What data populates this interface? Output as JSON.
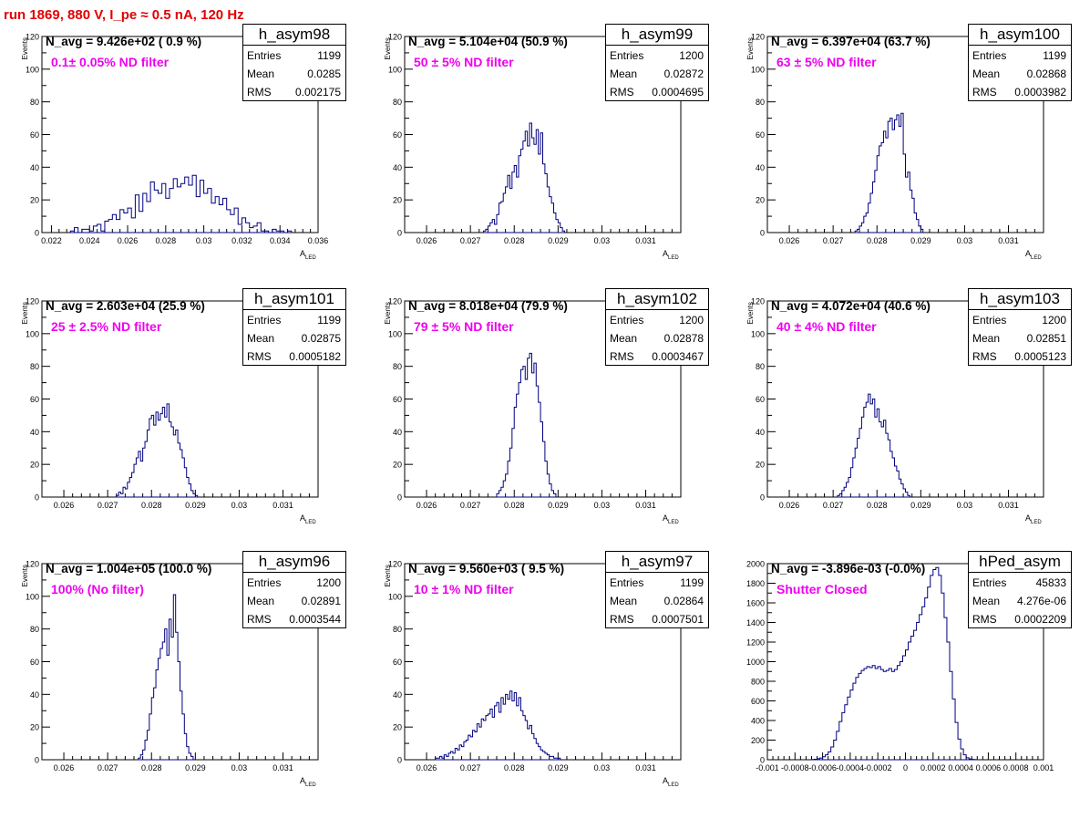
{
  "title": "run 1869,   880 V, I_pe ≈ 0.5 nA, 120 Hz",
  "colors": {
    "title": "#e00000",
    "annotation": "#ee00ee",
    "histogram": "#000080"
  },
  "chart_data": [
    {
      "type": "histogram",
      "hist_name": "h_asym98",
      "navg": "N_avg = 9.426e+02 ( 0.9 %)",
      "annotation": "0.1± 0.05% ND filter",
      "ylabel": "Events",
      "xlabel_main": "A",
      "xlabel_sub": "LED",
      "stats": {
        "entries_label": "Entries",
        "entries": "1199",
        "mean_label": "Mean",
        "mean": "0.0285",
        "rms_label": "RMS",
        "rms": "0.002175"
      },
      "xlim": [
        0.0215,
        0.036
      ],
      "ylim": [
        0,
        120
      ],
      "xticks": [
        0.022,
        0.024,
        0.026,
        0.028,
        0.03,
        0.032,
        0.034,
        0.036
      ],
      "xtick_labels": [
        "0.022",
        "0.024",
        "0.026",
        "0.028",
        "0.03",
        "0.032",
        "0.034",
        "0.036"
      ],
      "yticks": [
        0,
        20,
        40,
        60,
        80,
        100,
        120
      ],
      "ytick_labels": [
        "0",
        "20",
        "40",
        "60",
        "80",
        "100",
        "120"
      ],
      "bin_start": 0.023,
      "bin_width": 0.0002,
      "counts": [
        1,
        3,
        0,
        2,
        2,
        1,
        4,
        5,
        1,
        7,
        8,
        11,
        8,
        14,
        12,
        15,
        9,
        23,
        13,
        24,
        19,
        31,
        26,
        24,
        30,
        21,
        27,
        33,
        28,
        30,
        34,
        29,
        35,
        22,
        32,
        24,
        27,
        18,
        22,
        17,
        21,
        14,
        11,
        15,
        5,
        9,
        6,
        3,
        4,
        6,
        1,
        1,
        0,
        2,
        1,
        1,
        0,
        1
      ]
    },
    {
      "type": "histogram",
      "hist_name": "h_asym99",
      "navg": "N_avg = 5.104e+04 (50.9 %)",
      "annotation": "50 ± 5% ND filter",
      "ylabel": "Events",
      "xlabel_main": "A",
      "xlabel_sub": "LED",
      "stats": {
        "entries_label": "Entries",
        "entries": "1200",
        "mean_label": "Mean",
        "mean": "0.02872",
        "rms_label": "RMS",
        "rms": "0.0004695"
      },
      "xlim": [
        0.0255,
        0.0318
      ],
      "ylim": [
        0,
        120
      ],
      "xticks": [
        0.026,
        0.027,
        0.028,
        0.029,
        0.03,
        0.031
      ],
      "xtick_labels": [
        "0.026",
        "0.027",
        "0.028",
        "0.029",
        "0.03",
        "0.031"
      ],
      "yticks": [
        0,
        20,
        40,
        60,
        80,
        100,
        120
      ],
      "ytick_labels": [
        "0",
        "20",
        "40",
        "60",
        "80",
        "100",
        "120"
      ],
      "bin_start": 0.0273,
      "bin_width": 5e-05,
      "counts": [
        1,
        2,
        4,
        6,
        8,
        5,
        11,
        18,
        19,
        24,
        28,
        35,
        27,
        37,
        41,
        34,
        47,
        51,
        56,
        62,
        53,
        67,
        58,
        54,
        63,
        48,
        61,
        42,
        36,
        28,
        22,
        18,
        12,
        8,
        6,
        3,
        1
      ]
    },
    {
      "type": "histogram",
      "hist_name": "h_asym100",
      "navg": "N_avg = 6.397e+04 (63.7 %)",
      "annotation": "63 ± 5% ND filter",
      "ylabel": "Events",
      "xlabel_main": "A",
      "xlabel_sub": "LED",
      "stats": {
        "entries_label": "Entries",
        "entries": "1199",
        "mean_label": "Mean",
        "mean": "0.02868",
        "rms_label": "RMS",
        "rms": "0.0003982"
      },
      "xlim": [
        0.0255,
        0.0318
      ],
      "ylim": [
        0,
        120
      ],
      "xticks": [
        0.026,
        0.027,
        0.028,
        0.029,
        0.03,
        0.031
      ],
      "xtick_labels": [
        "0.026",
        "0.027",
        "0.028",
        "0.029",
        "0.03",
        "0.031"
      ],
      "yticks": [
        0,
        20,
        40,
        60,
        80,
        100,
        120
      ],
      "ytick_labels": [
        "0",
        "20",
        "40",
        "60",
        "80",
        "100",
        "120"
      ],
      "bin_start": 0.0275,
      "bin_width": 5e-05,
      "counts": [
        1,
        2,
        4,
        6,
        10,
        12,
        18,
        24,
        31,
        38,
        47,
        53,
        55,
        62,
        58,
        68,
        70,
        63,
        69,
        72,
        65,
        73,
        48,
        34,
        37,
        26,
        21,
        12,
        8,
        4,
        2
      ]
    },
    {
      "type": "histogram",
      "hist_name": "h_asym101",
      "navg": "N_avg = 2.603e+04 (25.9 %)",
      "annotation": "25 ± 2.5% ND filter",
      "ylabel": "Events",
      "xlabel_main": "A",
      "xlabel_sub": "LED",
      "stats": {
        "entries_label": "Entries",
        "entries": "1199",
        "mean_label": "Mean",
        "mean": "0.02875",
        "rms_label": "RMS",
        "rms": "0.0005182"
      },
      "xlim": [
        0.0255,
        0.0318
      ],
      "ylim": [
        0,
        120
      ],
      "xticks": [
        0.026,
        0.027,
        0.028,
        0.029,
        0.03,
        0.031
      ],
      "xtick_labels": [
        "0.026",
        "0.027",
        "0.028",
        "0.029",
        "0.03",
        "0.031"
      ],
      "yticks": [
        0,
        20,
        40,
        60,
        80,
        100,
        120
      ],
      "ytick_labels": [
        "0",
        "20",
        "40",
        "60",
        "80",
        "100",
        "120"
      ],
      "bin_start": 0.0272,
      "bin_width": 5e-05,
      "counts": [
        1,
        3,
        2,
        6,
        5,
        9,
        12,
        15,
        20,
        24,
        28,
        22,
        30,
        34,
        41,
        48,
        50,
        44,
        52,
        47,
        51,
        55,
        49,
        57,
        46,
        43,
        38,
        41,
        33,
        29,
        24,
        18,
        12,
        8,
        4,
        2,
        1
      ]
    },
    {
      "type": "histogram",
      "hist_name": "h_asym102",
      "navg": "N_avg = 8.018e+04 (79.9 %)",
      "annotation": "79 ± 5% ND filter",
      "ylabel": "Events",
      "xlabel_main": "A",
      "xlabel_sub": "LED",
      "stats": {
        "entries_label": "Entries",
        "entries": "1200",
        "mean_label": "Mean",
        "mean": "0.02878",
        "rms_label": "RMS",
        "rms": "0.0003467"
      },
      "xlim": [
        0.0255,
        0.0318
      ],
      "ylim": [
        0,
        120
      ],
      "xticks": [
        0.026,
        0.027,
        0.028,
        0.029,
        0.03,
        0.031
      ],
      "xtick_labels": [
        "0.026",
        "0.027",
        "0.028",
        "0.029",
        "0.03",
        "0.031"
      ],
      "yticks": [
        0,
        20,
        40,
        60,
        80,
        100,
        120
      ],
      "ytick_labels": [
        "0",
        "20",
        "40",
        "60",
        "80",
        "100",
        "120"
      ],
      "bin_start": 0.0276,
      "bin_width": 5e-05,
      "counts": [
        2,
        4,
        6,
        10,
        14,
        22,
        30,
        42,
        55,
        63,
        70,
        78,
        80,
        72,
        85,
        88,
        76,
        82,
        68,
        58,
        46,
        34,
        22,
        14,
        8,
        4,
        2
      ]
    },
    {
      "type": "histogram",
      "hist_name": "h_asym103",
      "navg": "N_avg = 4.072e+04 (40.6 %)",
      "annotation": "40 ± 4% ND filter",
      "ylabel": "Events",
      "xlabel_main": "A",
      "xlabel_sub": "LED",
      "stats": {
        "entries_label": "Entries",
        "entries": "1200",
        "mean_label": "Mean",
        "mean": "0.02851",
        "rms_label": "RMS",
        "rms": "0.0005123"
      },
      "xlim": [
        0.0255,
        0.0318
      ],
      "ylim": [
        0,
        120
      ],
      "xticks": [
        0.026,
        0.027,
        0.028,
        0.029,
        0.03,
        0.031
      ],
      "xtick_labels": [
        "0.026",
        "0.027",
        "0.028",
        "0.029",
        "0.03",
        "0.031"
      ],
      "yticks": [
        0,
        20,
        40,
        60,
        80,
        100,
        120
      ],
      "ytick_labels": [
        "0",
        "20",
        "40",
        "60",
        "80",
        "100",
        "120"
      ],
      "bin_start": 0.0271,
      "bin_width": 5e-05,
      "counts": [
        1,
        2,
        4,
        6,
        9,
        12,
        18,
        24,
        30,
        36,
        42,
        49,
        55,
        58,
        63,
        57,
        60,
        49,
        54,
        46,
        43,
        47,
        39,
        35,
        28,
        24,
        19,
        16,
        11,
        8,
        5,
        3,
        1
      ]
    },
    {
      "type": "histogram",
      "hist_name": "h_asym96",
      "navg": "N_avg = 1.004e+05 (100.0 %)",
      "annotation": "100% (No filter)",
      "ylabel": "Events",
      "xlabel_main": "A",
      "xlabel_sub": "LED",
      "stats": {
        "entries_label": "Entries",
        "entries": "1200",
        "mean_label": "Mean",
        "mean": "0.02891",
        "rms_label": "RMS",
        "rms": "0.0003544"
      },
      "xlim": [
        0.0255,
        0.0318
      ],
      "ylim": [
        0,
        120
      ],
      "xticks": [
        0.026,
        0.027,
        0.028,
        0.029,
        0.03,
        0.031
      ],
      "xtick_labels": [
        "0.026",
        "0.027",
        "0.028",
        "0.029",
        "0.03",
        "0.031"
      ],
      "yticks": [
        0,
        20,
        40,
        60,
        80,
        100,
        120
      ],
      "ytick_labels": [
        "0",
        "20",
        "40",
        "60",
        "80",
        "100",
        "120"
      ],
      "bin_start": 0.0277,
      "bin_width": 5e-05,
      "counts": [
        1,
        3,
        6,
        12,
        18,
        28,
        38,
        44,
        55,
        62,
        68,
        72,
        80,
        64,
        86,
        75,
        101,
        78,
        60,
        42,
        28,
        16,
        8,
        4,
        2
      ]
    },
    {
      "type": "histogram",
      "hist_name": "h_asym97",
      "navg": "N_avg = 9.560e+03 ( 9.5 %)",
      "annotation": "10 ± 1% ND filter",
      "ylabel": "Events",
      "xlabel_main": "A",
      "xlabel_sub": "LED",
      "stats": {
        "entries_label": "Entries",
        "entries": "1199",
        "mean_label": "Mean",
        "mean": "0.02864",
        "rms_label": "RMS",
        "rms": "0.0007501"
      },
      "xlim": [
        0.0255,
        0.0318
      ],
      "ylim": [
        0,
        120
      ],
      "xticks": [
        0.026,
        0.027,
        0.028,
        0.029,
        0.03,
        0.031
      ],
      "xtick_labels": [
        "0.026",
        "0.027",
        "0.028",
        "0.029",
        "0.03",
        "0.031"
      ],
      "yticks": [
        0,
        20,
        40,
        60,
        80,
        100,
        120
      ],
      "ytick_labels": [
        "0",
        "20",
        "40",
        "60",
        "80",
        "100",
        "120"
      ],
      "bin_start": 0.0262,
      "bin_width": 5e-05,
      "counts": [
        1,
        1,
        2,
        1,
        3,
        2,
        4,
        5,
        4,
        7,
        6,
        9,
        8,
        11,
        12,
        15,
        14,
        18,
        17,
        22,
        20,
        25,
        24,
        27,
        28,
        31,
        26,
        33,
        35,
        29,
        38,
        34,
        40,
        37,
        42,
        36,
        41,
        33,
        38,
        30,
        27,
        24,
        19,
        21,
        16,
        13,
        10,
        8,
        6,
        5,
        4,
        3,
        2,
        2,
        1,
        1,
        1
      ]
    },
    {
      "type": "histogram",
      "hist_name": "hPed_asym",
      "navg": "N_avg = -3.896e-03 (-0.0%)",
      "annotation": "Shutter Closed",
      "ylabel": "",
      "xlabel_main": "",
      "xlabel_sub": "",
      "stats": {
        "entries_label": "Entries",
        "entries": "45833",
        "mean_label": "Mean",
        "mean": "4.276e-06",
        "rms_label": "RMS",
        "rms": "0.0002209"
      },
      "xlim": [
        -0.001,
        0.001
      ],
      "ylim": [
        0,
        2000
      ],
      "xticks": [
        -0.001,
        -0.0008,
        -0.0006,
        -0.0004,
        -0.0002,
        0,
        0.0002,
        0.0004,
        0.0006,
        0.0008,
        0.001
      ],
      "xtick_labels": [
        "-0.001",
        "-0.0008",
        "-0.0006",
        "-0.0004",
        "-0.0002",
        "0",
        "0.0002",
        "0.0004",
        "0.0006",
        "0.0008",
        "0.001"
      ],
      "yticks": [
        0,
        200,
        400,
        600,
        800,
        1000,
        1200,
        1400,
        1600,
        1800,
        2000
      ],
      "ytick_labels": [
        "0",
        "200",
        "400",
        "600",
        "800",
        "1000",
        "1200",
        "1400",
        "1600",
        "1800",
        "2000"
      ],
      "bin_start": -0.00068,
      "bin_width": 2e-05,
      "counts": [
        2,
        5,
        10,
        18,
        30,
        50,
        80,
        130,
        200,
        290,
        390,
        480,
        560,
        640,
        710,
        780,
        840,
        880,
        910,
        930,
        950,
        940,
        960,
        930,
        950,
        920,
        900,
        910,
        930,
        900,
        920,
        960,
        1000,
        1060,
        1120,
        1200,
        1260,
        1320,
        1400,
        1480,
        1560,
        1650,
        1760,
        1880,
        1940,
        1960,
        1880,
        1700,
        1450,
        1200,
        900,
        620,
        380,
        210,
        110,
        50,
        20,
        8,
        3,
        1
      ]
    }
  ]
}
